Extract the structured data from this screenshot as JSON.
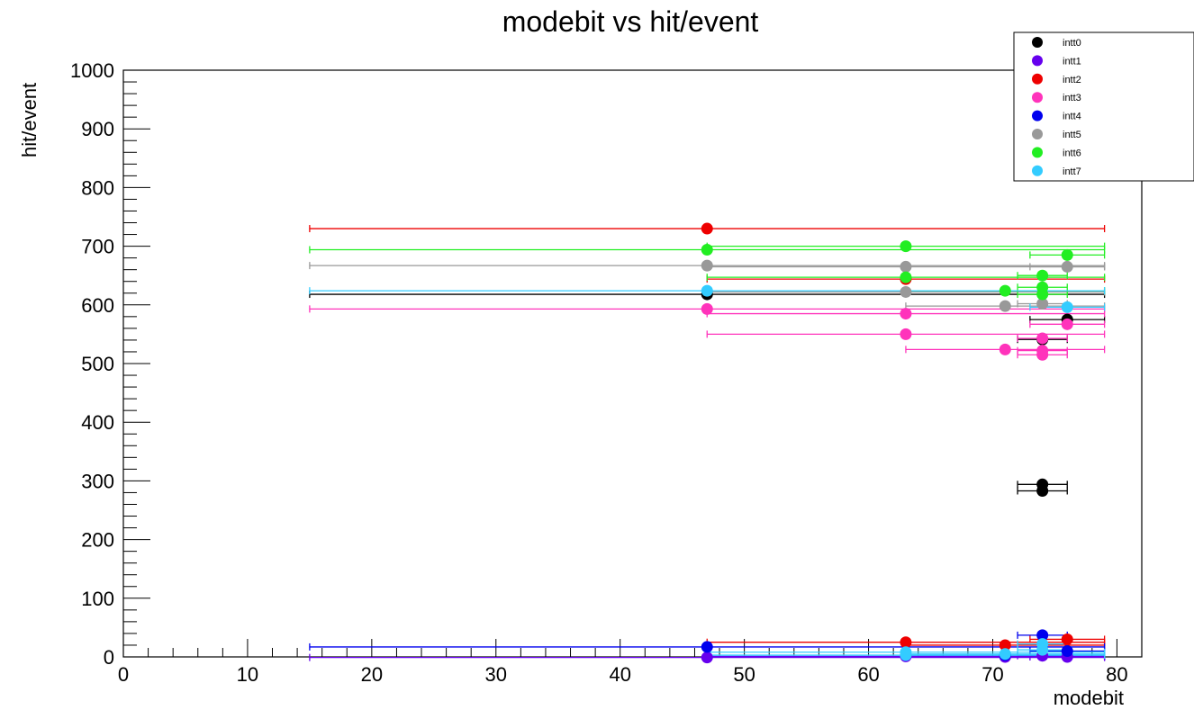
{
  "chart_data": {
    "type": "scatter",
    "title": "modebit vs hit/event",
    "xlabel": "modebit",
    "ylabel": "hit/event",
    "xlim": [
      0,
      82
    ],
    "ylim": [
      0,
      1000
    ],
    "xticks": [
      0,
      10,
      20,
      30,
      40,
      50,
      60,
      70,
      80
    ],
    "yticks": [
      0,
      100,
      200,
      300,
      400,
      500,
      600,
      700,
      800,
      900,
      1000
    ],
    "legend_position": "top-right",
    "grid": false,
    "series": [
      {
        "name": "intt0",
        "color": "#000000",
        "points": [
          {
            "x": 47,
            "y": 618,
            "xerr": [
              15,
              79
            ]
          },
          {
            "x": 74,
            "y": 294,
            "xerr": [
              72,
              76
            ]
          },
          {
            "x": 74,
            "y": 283,
            "xerr": [
              72,
              76
            ]
          },
          {
            "x": 76,
            "y": 575,
            "xerr": [
              73,
              79
            ]
          },
          {
            "x": 74,
            "y": 541,
            "xerr": [
              72,
              76
            ]
          }
        ]
      },
      {
        "name": "intt1",
        "color": "#6600ee",
        "points": [
          {
            "x": 47,
            "y": -1,
            "xerr": [
              15,
              79
            ]
          },
          {
            "x": 63,
            "y": 1,
            "xerr": [
              47,
              79
            ]
          },
          {
            "x": 71,
            "y": 0,
            "xerr": [
              63,
              79
            ]
          },
          {
            "x": 74,
            "y": 2,
            "xerr": [
              72,
              76
            ]
          },
          {
            "x": 76,
            "y": 0,
            "xerr": [
              73,
              79
            ]
          }
        ]
      },
      {
        "name": "intt2",
        "color": "#ee0000",
        "points": [
          {
            "x": 47,
            "y": 730,
            "xerr": [
              15,
              79
            ]
          },
          {
            "x": 63,
            "y": 644,
            "xerr": [
              47,
              79
            ]
          },
          {
            "x": 63,
            "y": 25,
            "xerr": [
              47,
              79
            ]
          },
          {
            "x": 71,
            "y": 20,
            "xerr": [
              63,
              79
            ]
          },
          {
            "x": 76,
            "y": 30,
            "xerr": [
              73,
              79
            ]
          }
        ]
      },
      {
        "name": "intt3",
        "color": "#ff33bb",
        "points": [
          {
            "x": 47,
            "y": 593,
            "xerr": [
              15,
              79
            ]
          },
          {
            "x": 63,
            "y": 585,
            "xerr": [
              47,
              79
            ]
          },
          {
            "x": 63,
            "y": 550,
            "xerr": [
              47,
              79
            ]
          },
          {
            "x": 71,
            "y": 524,
            "xerr": [
              63,
              79
            ]
          },
          {
            "x": 74,
            "y": 543,
            "xerr": [
              72,
              76
            ]
          },
          {
            "x": 74,
            "y": 522,
            "xerr": [
              72,
              76
            ]
          },
          {
            "x": 74,
            "y": 515,
            "xerr": [
              72,
              76
            ]
          },
          {
            "x": 76,
            "y": 567,
            "xerr": [
              73,
              79
            ]
          }
        ]
      },
      {
        "name": "intt4",
        "color": "#0000ee",
        "points": [
          {
            "x": 47,
            "y": 17,
            "xerr": [
              15,
              79
            ]
          },
          {
            "x": 74,
            "y": 37,
            "xerr": [
              72,
              76
            ]
          },
          {
            "x": 71,
            "y": 3,
            "xerr": [
              63,
              79
            ]
          },
          {
            "x": 76,
            "y": 10,
            "xerr": [
              73,
              79
            ]
          }
        ]
      },
      {
        "name": "intt5",
        "color": "#999999",
        "points": [
          {
            "x": 47,
            "y": 667,
            "xerr": [
              15,
              79
            ]
          },
          {
            "x": 63,
            "y": 665,
            "xerr": [
              47,
              79
            ]
          },
          {
            "x": 63,
            "y": 622,
            "xerr": [
              47,
              79
            ]
          },
          {
            "x": 71,
            "y": 598,
            "xerr": [
              63,
              79
            ]
          },
          {
            "x": 74,
            "y": 602,
            "xerr": [
              72,
              76
            ]
          },
          {
            "x": 76,
            "y": 665,
            "xerr": [
              73,
              79
            ]
          }
        ]
      },
      {
        "name": "intt6",
        "color": "#22ee22",
        "points": [
          {
            "x": 47,
            "y": 694,
            "xerr": [
              15,
              79
            ]
          },
          {
            "x": 63,
            "y": 700,
            "xerr": [
              47,
              79
            ]
          },
          {
            "x": 63,
            "y": 647,
            "xerr": [
              47,
              79
            ]
          },
          {
            "x": 71,
            "y": 624,
            "xerr": [
              63,
              79
            ]
          },
          {
            "x": 74,
            "y": 650,
            "xerr": [
              72,
              76
            ]
          },
          {
            "x": 74,
            "y": 630,
            "xerr": [
              72,
              76
            ]
          },
          {
            "x": 74,
            "y": 618,
            "xerr": [
              72,
              76
            ]
          },
          {
            "x": 76,
            "y": 685,
            "xerr": [
              73,
              79
            ]
          }
        ]
      },
      {
        "name": "intt7",
        "color": "#33ccff",
        "points": [
          {
            "x": 47,
            "y": 624,
            "xerr": [
              15,
              79
            ]
          },
          {
            "x": 63,
            "y": 8,
            "xerr": [
              47,
              79
            ]
          },
          {
            "x": 63,
            "y": 3,
            "xerr": [
              47,
              79
            ]
          },
          {
            "x": 71,
            "y": 5,
            "xerr": [
              63,
              79
            ]
          },
          {
            "x": 74,
            "y": 22,
            "xerr": [
              72,
              76
            ]
          },
          {
            "x": 74,
            "y": 12,
            "xerr": [
              72,
              76
            ]
          },
          {
            "x": 76,
            "y": 596,
            "xerr": [
              73,
              79
            ]
          }
        ]
      }
    ]
  }
}
